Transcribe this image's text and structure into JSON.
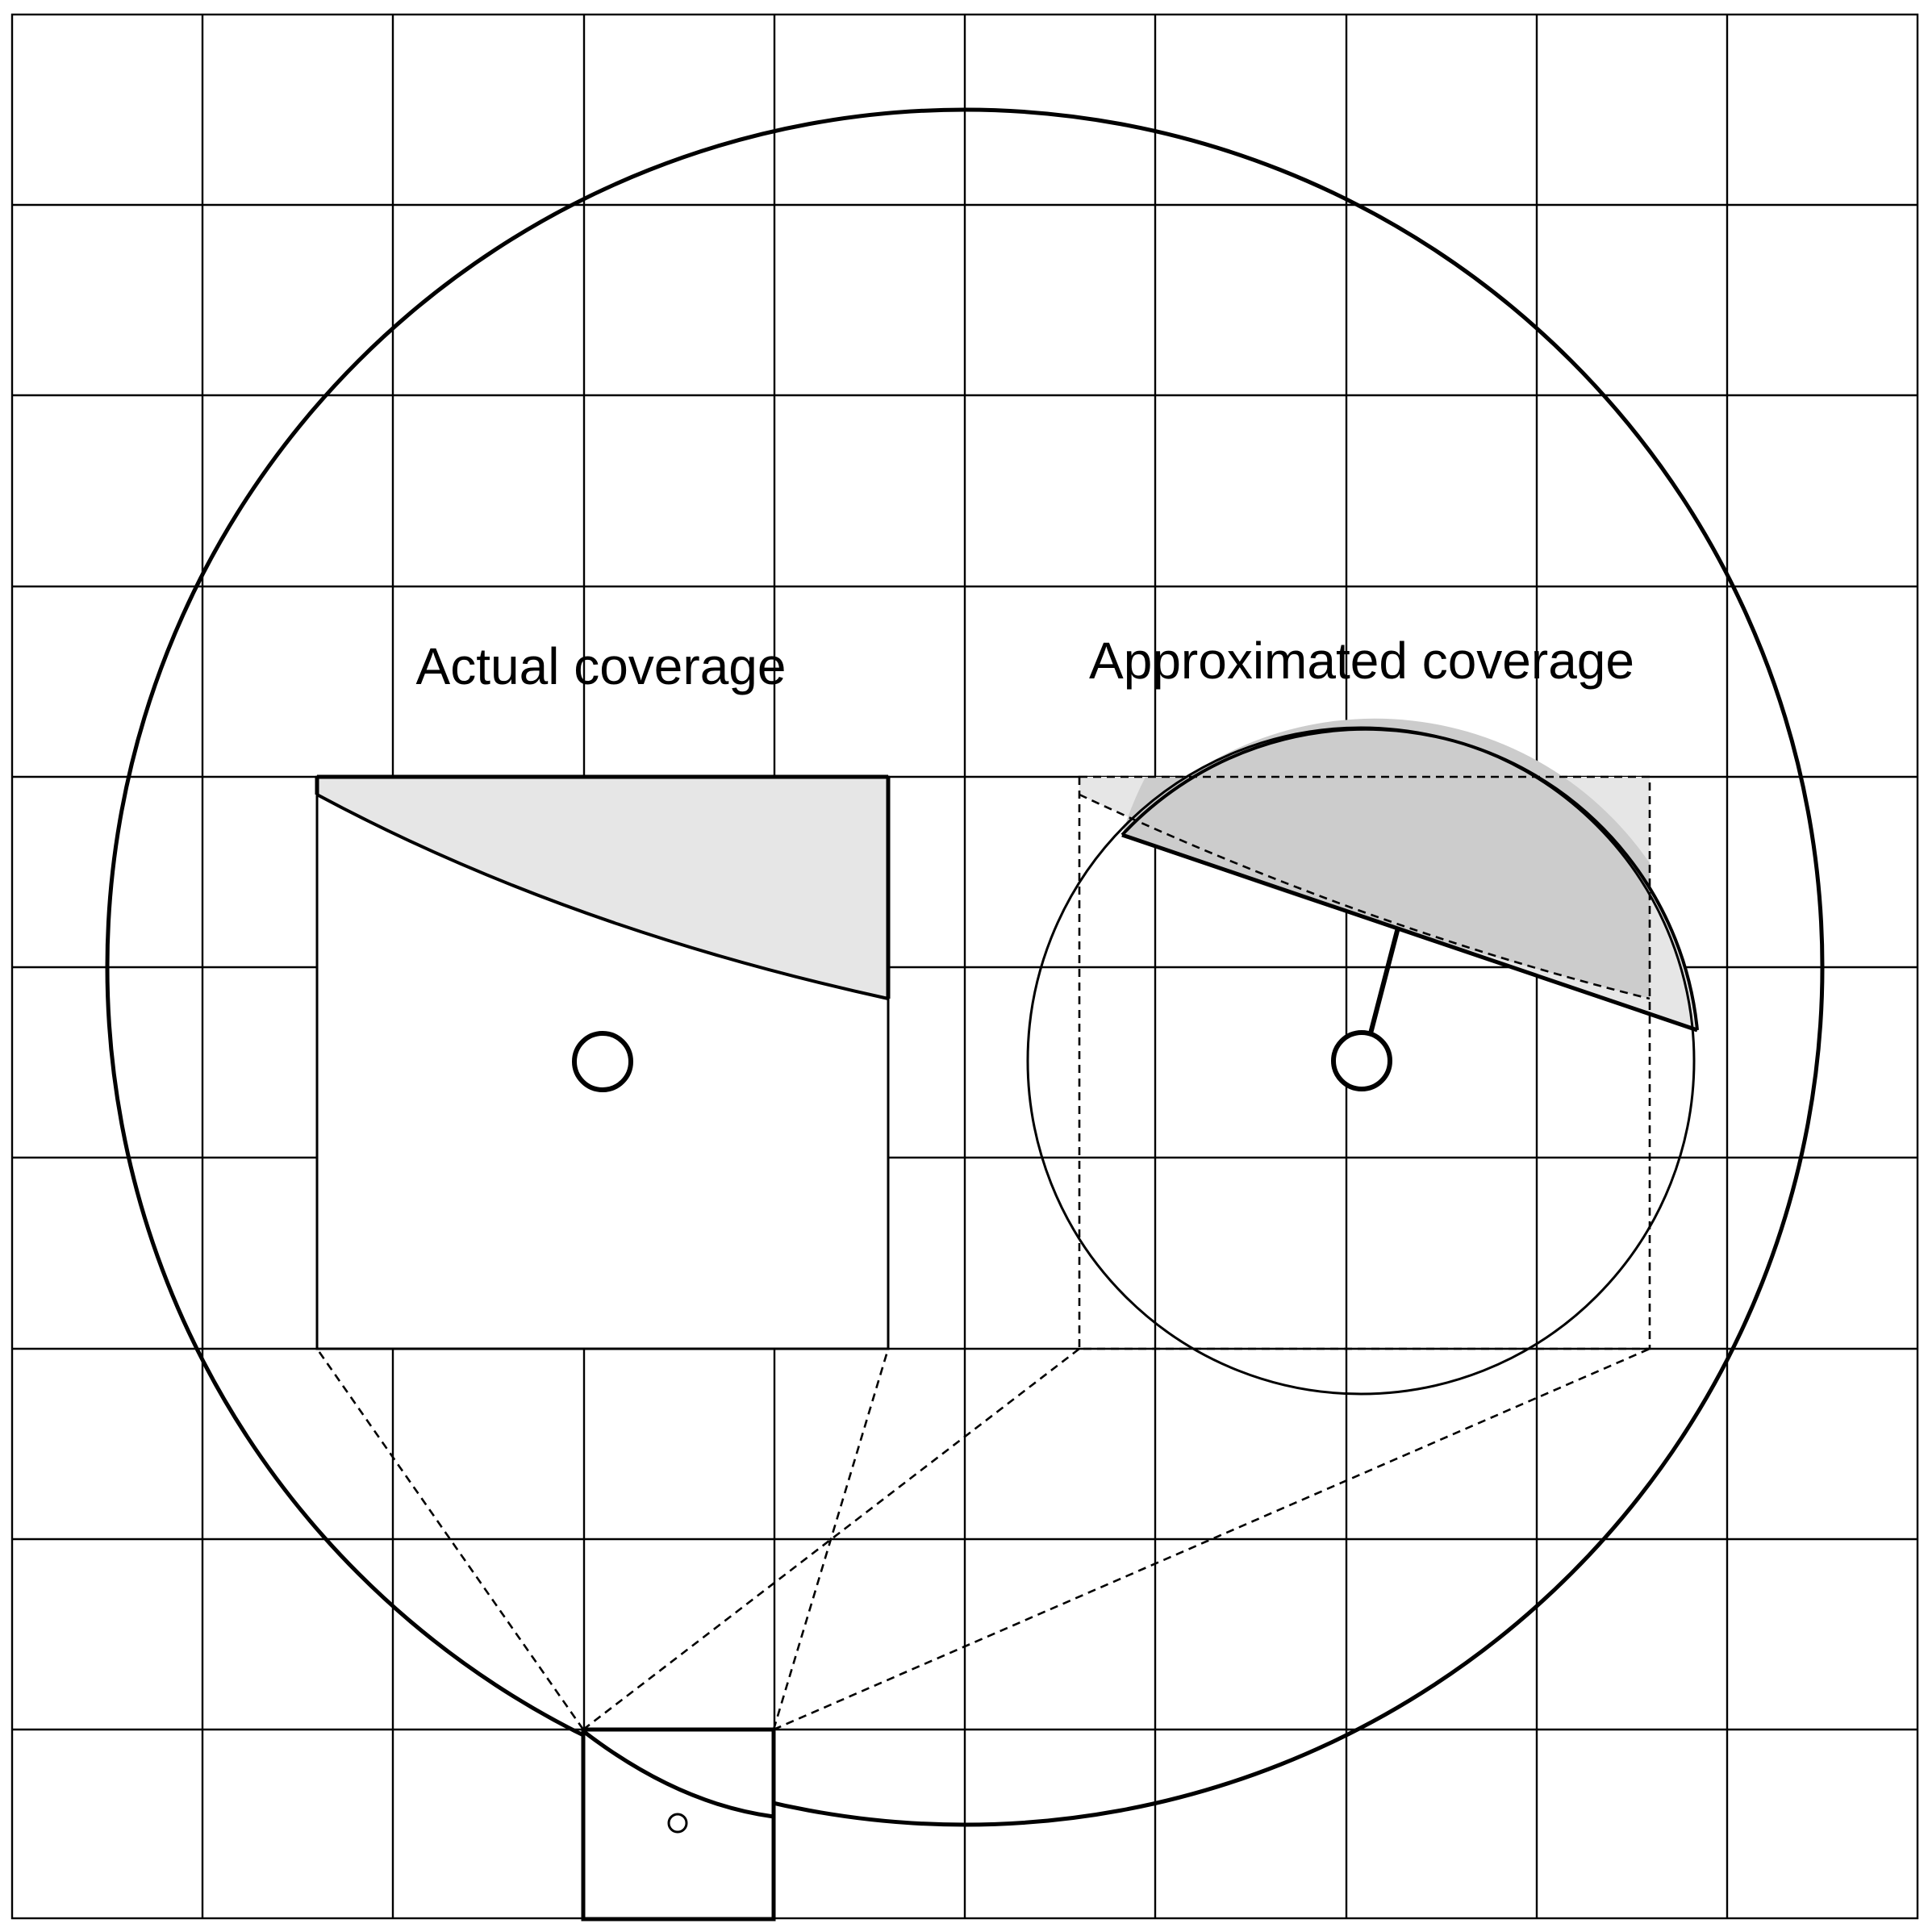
{
  "labels": {
    "actual": "Actual coverage",
    "approximated": "Approximated coverage"
  },
  "colors": {
    "stroke": "#000000",
    "shade_light": "#e6e6e6",
    "shade_dark": "#cccccc",
    "background": "#ffffff"
  }
}
